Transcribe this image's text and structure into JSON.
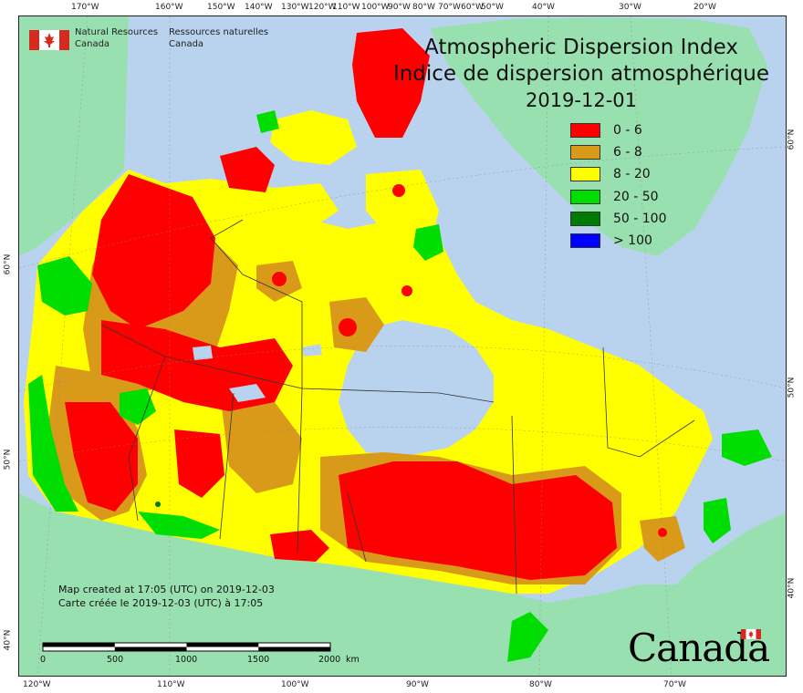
{
  "agency": {
    "name_en_line1": "Natural Resources",
    "name_en_line2": "Canada",
    "name_fr_line1": "Ressources naturelles",
    "name_fr_line2": "Canada"
  },
  "title": {
    "en": "Atmospheric Dispersion Index",
    "fr": "Indice de dispersion atmosphérique",
    "date": "2019-12-01"
  },
  "legend": [
    {
      "label": "0 - 6",
      "color": "#ff0000"
    },
    {
      "label": "6 - 8",
      "color": "#d99a1a"
    },
    {
      "label": "8 - 20",
      "color": "#ffff00"
    },
    {
      "label": "20 - 50",
      "color": "#00dd00"
    },
    {
      "label": "50 - 100",
      "color": "#007a00"
    },
    {
      "label": "> 100",
      "color": "#0000ff"
    }
  ],
  "credits": {
    "line1": "Map created at 17:05 (UTC) on 2019-12-03",
    "line2": "Carte créée le 2019-12-03 (UTC) à 17:05"
  },
  "scalebar": {
    "labels": [
      "0",
      "500",
      "1000",
      "1500",
      "2000"
    ],
    "unit": "km"
  },
  "top_ticks": [
    "170°W",
    "160°W",
    "150°W",
    "140°W",
    "130°W",
    "120°W",
    "110°W",
    "100°W",
    "90°W",
    "80°W",
    "70°W",
    "60°W",
    "50°W",
    "40°W",
    "30°W",
    "20°W"
  ],
  "bottom_ticks": [
    "120°W",
    "110°W",
    "100°W",
    "90°W",
    "80°W",
    "70°W"
  ],
  "left_ticks": [
    "60°N",
    "50°N",
    "40°N"
  ],
  "right_ticks": [
    "60°N",
    "50°N",
    "40°N"
  ],
  "wordmark": "Canada",
  "colors": {
    "ocean": "#b9d3ee",
    "foreign_land": "#99e0b0",
    "border": "#333333"
  }
}
